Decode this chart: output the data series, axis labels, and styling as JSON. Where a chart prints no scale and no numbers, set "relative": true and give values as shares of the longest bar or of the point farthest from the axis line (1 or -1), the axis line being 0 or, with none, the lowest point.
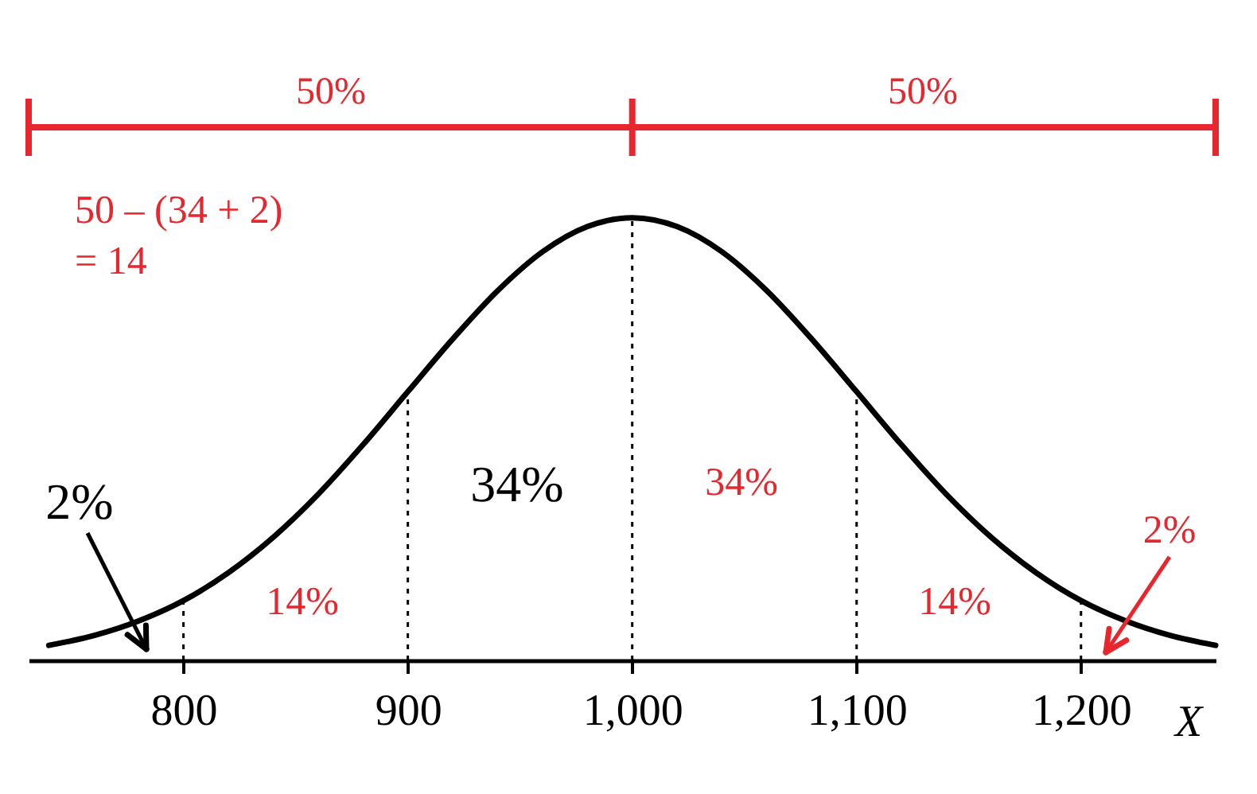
{
  "chart_data": {
    "type": "line",
    "relative": true,
    "xlabel": "X",
    "x": [
      740,
      760,
      780,
      800,
      820,
      840,
      860,
      880,
      900,
      920,
      940,
      960,
      980,
      1000,
      1020,
      1040,
      1060,
      1080,
      1100,
      1120,
      1140,
      1160,
      1180,
      1200,
      1220,
      1240,
      1260
    ],
    "series": [
      {
        "color": "#000000",
        "values": [
          0.034,
          0.056,
          0.089,
          0.135,
          0.198,
          0.278,
          0.375,
          0.487,
          0.607,
          0.726,
          0.835,
          0.923,
          0.98,
          1,
          0.98,
          0.923,
          0.835,
          0.726,
          0.607,
          0.487,
          0.375,
          0.278,
          0.198,
          0.135,
          0.089,
          0.056,
          0.034
        ]
      }
    ],
    "xlim": [
      731,
      1260
    ],
    "xticks": [
      800,
      900,
      {
        "value": 1000,
        "label": "1,000"
      },
      {
        "value": 1100,
        "label": "1,100"
      },
      {
        "value": 1200,
        "label": "1,200"
      }
    ],
    "ref_lines": [
      {
        "axis": "x",
        "value": 800,
        "color": "#000000",
        "line_style": "dotted"
      },
      {
        "axis": "x",
        "value": 900,
        "color": "#000000",
        "line_style": "dotted"
      },
      {
        "axis": "x",
        "value": 1000,
        "color": "#000000",
        "line_style": "dotted"
      },
      {
        "axis": "x",
        "value": 1100,
        "color": "#000000",
        "line_style": "dotted"
      },
      {
        "axis": "x",
        "value": 1200,
        "color": "#000000",
        "line_style": "dotted"
      }
    ],
    "annotations": [
      "50%",
      "50%",
      "50 – (34 + 2)\n= 14",
      "2%",
      "34%",
      "34%",
      "14%",
      "14%",
      "2%"
    ],
    "grid": false,
    "marker": "none",
    "line_style": "solid"
  }
}
